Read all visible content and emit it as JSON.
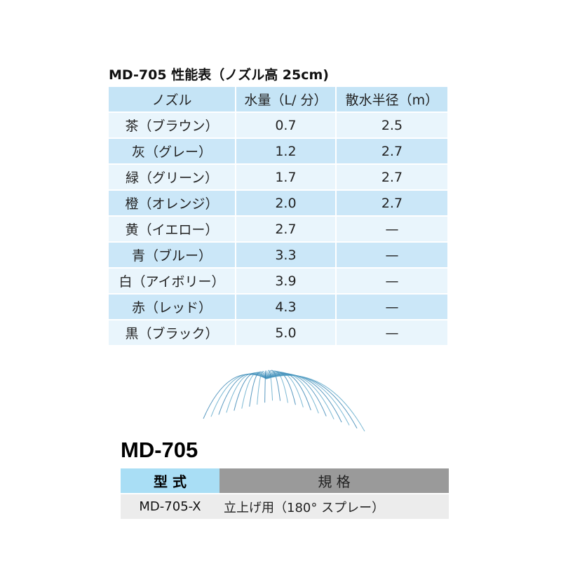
{
  "spec_table": {
    "title": "MD-705 性能表（ノズル高 25cm)",
    "headers": [
      "ノズル",
      "水量（L/ 分）",
      "散水半径（m）"
    ],
    "rows": [
      [
        "茶（ブラウン）",
        "0.7",
        "2.5"
      ],
      [
        "灰（グレー）",
        "1.2",
        "2.7"
      ],
      [
        "緑（グリーン）",
        "1.7",
        "2.7"
      ],
      [
        "橙（オレンジ）",
        "2.0",
        "2.7"
      ],
      [
        "黄（イエロー）",
        "2.7",
        "—"
      ],
      [
        "青（ブルー）",
        "3.3",
        "—"
      ],
      [
        "白（アイボリー）",
        "3.9",
        "—"
      ],
      [
        "赤（レッド）",
        "4.3",
        "—"
      ],
      [
        "黒（ブラック）",
        "5.0",
        "—"
      ]
    ]
  },
  "model": {
    "title": "MD-705",
    "headers": [
      "型 式",
      "規 格"
    ],
    "rows": [
      [
        "MD-705-X",
        "立上げ用（180° スプレー）"
      ]
    ]
  }
}
